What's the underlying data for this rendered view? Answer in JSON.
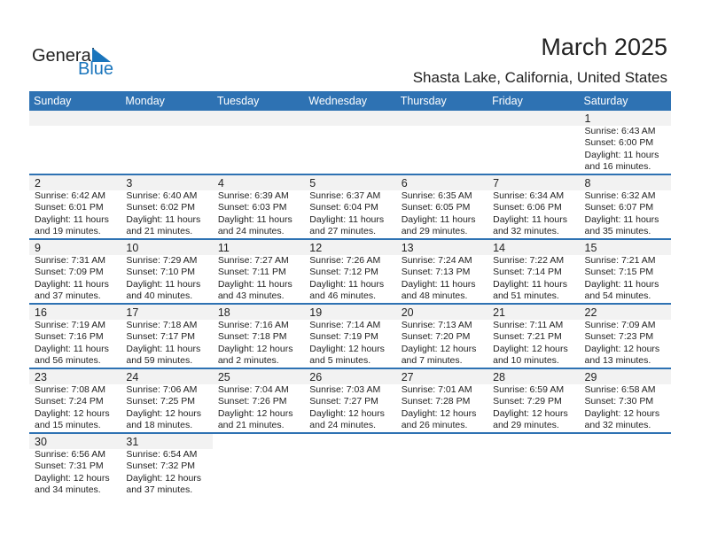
{
  "logo": {
    "line1": "General",
    "line2": "Blue"
  },
  "header": {
    "title": "March 2025",
    "location": "Shasta Lake, California, United States"
  },
  "colors": {
    "accent": "#2e72b3",
    "day_band": "#f2f2f2"
  },
  "weekdays": [
    "Sunday",
    "Monday",
    "Tuesday",
    "Wednesday",
    "Thursday",
    "Friday",
    "Saturday"
  ],
  "weeks": [
    [
      null,
      null,
      null,
      null,
      null,
      null,
      {
        "day": "1",
        "sunrise": "Sunrise: 6:43 AM",
        "sunset": "Sunset: 6:00 PM",
        "daylight": "Daylight: 11 hours",
        "minutes": "and 16 minutes."
      }
    ],
    [
      {
        "day": "2",
        "sunrise": "Sunrise: 6:42 AM",
        "sunset": "Sunset: 6:01 PM",
        "daylight": "Daylight: 11 hours",
        "minutes": "and 19 minutes."
      },
      {
        "day": "3",
        "sunrise": "Sunrise: 6:40 AM",
        "sunset": "Sunset: 6:02 PM",
        "daylight": "Daylight: 11 hours",
        "minutes": "and 21 minutes."
      },
      {
        "day": "4",
        "sunrise": "Sunrise: 6:39 AM",
        "sunset": "Sunset: 6:03 PM",
        "daylight": "Daylight: 11 hours",
        "minutes": "and 24 minutes."
      },
      {
        "day": "5",
        "sunrise": "Sunrise: 6:37 AM",
        "sunset": "Sunset: 6:04 PM",
        "daylight": "Daylight: 11 hours",
        "minutes": "and 27 minutes."
      },
      {
        "day": "6",
        "sunrise": "Sunrise: 6:35 AM",
        "sunset": "Sunset: 6:05 PM",
        "daylight": "Daylight: 11 hours",
        "minutes": "and 29 minutes."
      },
      {
        "day": "7",
        "sunrise": "Sunrise: 6:34 AM",
        "sunset": "Sunset: 6:06 PM",
        "daylight": "Daylight: 11 hours",
        "minutes": "and 32 minutes."
      },
      {
        "day": "8",
        "sunrise": "Sunrise: 6:32 AM",
        "sunset": "Sunset: 6:07 PM",
        "daylight": "Daylight: 11 hours",
        "minutes": "and 35 minutes."
      }
    ],
    [
      {
        "day": "9",
        "sunrise": "Sunrise: 7:31 AM",
        "sunset": "Sunset: 7:09 PM",
        "daylight": "Daylight: 11 hours",
        "minutes": "and 37 minutes."
      },
      {
        "day": "10",
        "sunrise": "Sunrise: 7:29 AM",
        "sunset": "Sunset: 7:10 PM",
        "daylight": "Daylight: 11 hours",
        "minutes": "and 40 minutes."
      },
      {
        "day": "11",
        "sunrise": "Sunrise: 7:27 AM",
        "sunset": "Sunset: 7:11 PM",
        "daylight": "Daylight: 11 hours",
        "minutes": "and 43 minutes."
      },
      {
        "day": "12",
        "sunrise": "Sunrise: 7:26 AM",
        "sunset": "Sunset: 7:12 PM",
        "daylight": "Daylight: 11 hours",
        "minutes": "and 46 minutes."
      },
      {
        "day": "13",
        "sunrise": "Sunrise: 7:24 AM",
        "sunset": "Sunset: 7:13 PM",
        "daylight": "Daylight: 11 hours",
        "minutes": "and 48 minutes."
      },
      {
        "day": "14",
        "sunrise": "Sunrise: 7:22 AM",
        "sunset": "Sunset: 7:14 PM",
        "daylight": "Daylight: 11 hours",
        "minutes": "and 51 minutes."
      },
      {
        "day": "15",
        "sunrise": "Sunrise: 7:21 AM",
        "sunset": "Sunset: 7:15 PM",
        "daylight": "Daylight: 11 hours",
        "minutes": "and 54 minutes."
      }
    ],
    [
      {
        "day": "16",
        "sunrise": "Sunrise: 7:19 AM",
        "sunset": "Sunset: 7:16 PM",
        "daylight": "Daylight: 11 hours",
        "minutes": "and 56 minutes."
      },
      {
        "day": "17",
        "sunrise": "Sunrise: 7:18 AM",
        "sunset": "Sunset: 7:17 PM",
        "daylight": "Daylight: 11 hours",
        "minutes": "and 59 minutes."
      },
      {
        "day": "18",
        "sunrise": "Sunrise: 7:16 AM",
        "sunset": "Sunset: 7:18 PM",
        "daylight": "Daylight: 12 hours",
        "minutes": "and 2 minutes."
      },
      {
        "day": "19",
        "sunrise": "Sunrise: 7:14 AM",
        "sunset": "Sunset: 7:19 PM",
        "daylight": "Daylight: 12 hours",
        "minutes": "and 5 minutes."
      },
      {
        "day": "20",
        "sunrise": "Sunrise: 7:13 AM",
        "sunset": "Sunset: 7:20 PM",
        "daylight": "Daylight: 12 hours",
        "minutes": "and 7 minutes."
      },
      {
        "day": "21",
        "sunrise": "Sunrise: 7:11 AM",
        "sunset": "Sunset: 7:21 PM",
        "daylight": "Daylight: 12 hours",
        "minutes": "and 10 minutes."
      },
      {
        "day": "22",
        "sunrise": "Sunrise: 7:09 AM",
        "sunset": "Sunset: 7:23 PM",
        "daylight": "Daylight: 12 hours",
        "minutes": "and 13 minutes."
      }
    ],
    [
      {
        "day": "23",
        "sunrise": "Sunrise: 7:08 AM",
        "sunset": "Sunset: 7:24 PM",
        "daylight": "Daylight: 12 hours",
        "minutes": "and 15 minutes."
      },
      {
        "day": "24",
        "sunrise": "Sunrise: 7:06 AM",
        "sunset": "Sunset: 7:25 PM",
        "daylight": "Daylight: 12 hours",
        "minutes": "and 18 minutes."
      },
      {
        "day": "25",
        "sunrise": "Sunrise: 7:04 AM",
        "sunset": "Sunset: 7:26 PM",
        "daylight": "Daylight: 12 hours",
        "minutes": "and 21 minutes."
      },
      {
        "day": "26",
        "sunrise": "Sunrise: 7:03 AM",
        "sunset": "Sunset: 7:27 PM",
        "daylight": "Daylight: 12 hours",
        "minutes": "and 24 minutes."
      },
      {
        "day": "27",
        "sunrise": "Sunrise: 7:01 AM",
        "sunset": "Sunset: 7:28 PM",
        "daylight": "Daylight: 12 hours",
        "minutes": "and 26 minutes."
      },
      {
        "day": "28",
        "sunrise": "Sunrise: 6:59 AM",
        "sunset": "Sunset: 7:29 PM",
        "daylight": "Daylight: 12 hours",
        "minutes": "and 29 minutes."
      },
      {
        "day": "29",
        "sunrise": "Sunrise: 6:58 AM",
        "sunset": "Sunset: 7:30 PM",
        "daylight": "Daylight: 12 hours",
        "minutes": "and 32 minutes."
      }
    ],
    [
      {
        "day": "30",
        "sunrise": "Sunrise: 6:56 AM",
        "sunset": "Sunset: 7:31 PM",
        "daylight": "Daylight: 12 hours",
        "minutes": "and 34 minutes."
      },
      {
        "day": "31",
        "sunrise": "Sunrise: 6:54 AM",
        "sunset": "Sunset: 7:32 PM",
        "daylight": "Daylight: 12 hours",
        "minutes": "and 37 minutes."
      },
      null,
      null,
      null,
      null,
      null
    ]
  ]
}
